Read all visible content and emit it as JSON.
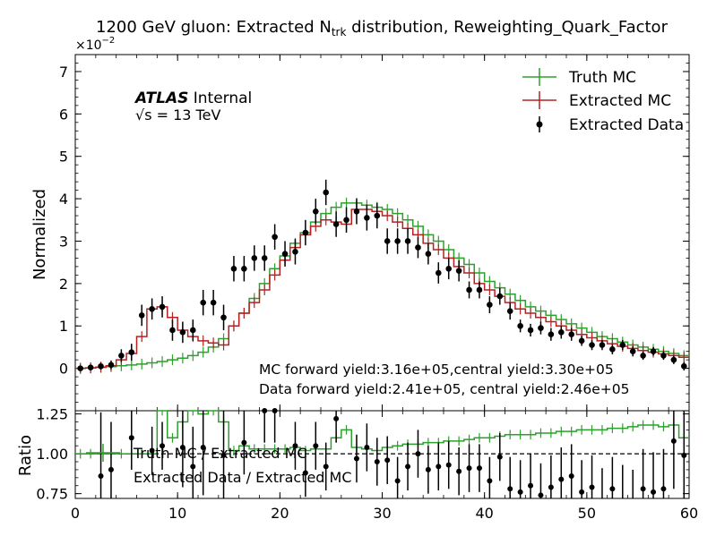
{
  "chart_data": {
    "type": "histogram",
    "title": "1200 GeV gluon: Extracted N",
    "title_sub": "trk",
    "title_suffix": " distribution, Reweighting_Quark_Factor",
    "exponent_label": "×10",
    "exponent_value": "−2",
    "ylabel": "Normalized",
    "ratio_ylabel": "Ratio",
    "atlas_label": "ATLAS",
    "internal_label": "Internal",
    "energy_label": "√s =  13 TeV",
    "annotation_mc": "MC forward yield:3.16e+05,central yield:3.30e+05",
    "annotation_data": "Data forward yield:2.41e+05, central yield:2.46e+05",
    "legend": {
      "position": "top-right",
      "entries": [
        {
          "label": "Truth MC",
          "color": "#2ca02c",
          "style": "step"
        },
        {
          "label": "Extracted MC",
          "color": "#b22222",
          "style": "step"
        },
        {
          "label": "Extracted Data",
          "color": "#000000",
          "style": "marker"
        }
      ]
    },
    "ratio_legend": {
      "entries": [
        {
          "label": "Truth MC / Extracted MC",
          "color": "#2ca02c"
        },
        {
          "label": "Extracted Data / Extracted MC",
          "color": "#000000"
        }
      ]
    },
    "xlim": [
      0,
      60
    ],
    "ylim": [
      -1,
      7.4
    ],
    "ratio_ylim": [
      0.72,
      1.27
    ],
    "x_ticks": [
      "0",
      "10",
      "20",
      "30",
      "40",
      "50",
      "60"
    ],
    "y_ticks": [
      "0",
      "1",
      "2",
      "3",
      "4",
      "5",
      "6",
      "7"
    ],
    "ratio_ticks": [
      "0.75",
      "1.00",
      "1.25"
    ],
    "bins": [
      0,
      1,
      2,
      3,
      4,
      5,
      6,
      7,
      8,
      9,
      10,
      11,
      12,
      13,
      14,
      15,
      16,
      17,
      18,
      19,
      20,
      21,
      22,
      23,
      24,
      25,
      26,
      27,
      28,
      29,
      30,
      31,
      32,
      33,
      34,
      35,
      36,
      37,
      38,
      39,
      40,
      41,
      42,
      43,
      44,
      45,
      46,
      47,
      48,
      49,
      50,
      51,
      52,
      53,
      54,
      55,
      56,
      57,
      58,
      59,
      60
    ],
    "series": [
      {
        "name": "Truth MC",
        "color": "#2ca02c",
        "values": [
          0.0,
          0.01,
          0.02,
          0.04,
          0.06,
          0.08,
          0.1,
          0.13,
          0.16,
          0.2,
          0.24,
          0.3,
          0.38,
          0.5,
          0.7,
          1.0,
          1.3,
          1.65,
          2.0,
          2.35,
          2.65,
          2.95,
          3.2,
          3.45,
          3.65,
          3.8,
          3.9,
          3.9,
          3.85,
          3.8,
          3.75,
          3.65,
          3.5,
          3.35,
          3.15,
          3.0,
          2.8,
          2.6,
          2.45,
          2.25,
          2.05,
          1.9,
          1.75,
          1.6,
          1.45,
          1.35,
          1.25,
          1.15,
          1.05,
          0.95,
          0.85,
          0.75,
          0.7,
          0.62,
          0.55,
          0.5,
          0.45,
          0.4,
          0.35,
          0.3
        ]
      },
      {
        "name": "Extracted MC",
        "color": "#b22222",
        "values": [
          0.0,
          0.01,
          0.03,
          0.06,
          0.2,
          0.35,
          0.75,
          1.4,
          1.45,
          1.2,
          0.9,
          0.75,
          0.65,
          0.6,
          0.55,
          1.0,
          1.3,
          1.55,
          1.85,
          2.2,
          2.55,
          2.85,
          3.15,
          3.35,
          3.5,
          3.45,
          3.4,
          3.75,
          3.75,
          3.7,
          3.6,
          3.45,
          3.3,
          3.15,
          2.95,
          2.8,
          2.6,
          2.4,
          2.25,
          2.0,
          1.85,
          1.7,
          1.55,
          1.4,
          1.3,
          1.2,
          1.1,
          1.0,
          0.9,
          0.8,
          0.72,
          0.65,
          0.58,
          0.52,
          0.47,
          0.42,
          0.38,
          0.34,
          0.3,
          0.26
        ]
      },
      {
        "name": "Extracted Data",
        "color": "#000000",
        "x": [
          0.5,
          1.5,
          2.5,
          3.5,
          4.5,
          5.5,
          6.5,
          7.5,
          8.5,
          9.5,
          10.5,
          11.5,
          12.5,
          13.5,
          14.5,
          15.5,
          16.5,
          17.5,
          18.5,
          19.5,
          20.5,
          21.5,
          22.5,
          23.5,
          24.5,
          25.5,
          26.5,
          27.5,
          28.5,
          29.5,
          30.5,
          31.5,
          32.5,
          33.5,
          34.5,
          35.5,
          36.5,
          37.5,
          38.5,
          39.5,
          40.5,
          41.5,
          42.5,
          43.5,
          44.5,
          45.5,
          46.5,
          47.5,
          48.5,
          49.5,
          50.5,
          51.5,
          52.5,
          53.5,
          54.5,
          55.5,
          56.5,
          57.5,
          58.5,
          59.5
        ],
        "values": [
          0.0,
          0.02,
          0.05,
          0.08,
          0.3,
          0.38,
          1.25,
          1.4,
          1.45,
          0.9,
          0.85,
          0.9,
          1.55,
          1.55,
          1.2,
          2.35,
          2.35,
          2.6,
          2.6,
          3.1,
          2.7,
          2.75,
          3.2,
          3.7,
          4.15,
          3.4,
          3.5,
          3.7,
          3.55,
          3.6,
          3.0,
          3.0,
          3.0,
          2.85,
          2.7,
          2.25,
          2.35,
          2.3,
          1.85,
          1.85,
          1.5,
          1.7,
          1.35,
          1.0,
          0.9,
          0.95,
          0.8,
          0.85,
          0.8,
          0.65,
          0.55,
          0.55,
          0.45,
          0.55,
          0.4,
          0.3,
          0.4,
          0.3,
          0.2,
          0.05
        ],
        "errors": [
          0.05,
          0.05,
          0.08,
          0.1,
          0.15,
          0.2,
          0.25,
          0.25,
          0.25,
          0.25,
          0.25,
          0.25,
          0.3,
          0.3,
          0.3,
          0.3,
          0.3,
          0.3,
          0.3,
          0.3,
          0.3,
          0.3,
          0.3,
          0.3,
          0.3,
          0.3,
          0.3,
          0.3,
          0.3,
          0.3,
          0.3,
          0.3,
          0.3,
          0.25,
          0.25,
          0.25,
          0.25,
          0.25,
          0.2,
          0.2,
          0.2,
          0.2,
          0.2,
          0.15,
          0.15,
          0.15,
          0.15,
          0.15,
          0.15,
          0.12,
          0.12,
          0.12,
          0.12,
          0.12,
          0.12,
          0.1,
          0.1,
          0.1,
          0.1,
          0.1
        ]
      }
    ],
    "ratio_series": [
      {
        "name": "Truth MC / Extracted MC",
        "color": "#2ca02c",
        "values": [
          1.0,
          1.0,
          1.0,
          1.0,
          1.0,
          1.0,
          1.0,
          1.0,
          1.3,
          1.1,
          1.2,
          1.35,
          1.25,
          1.3,
          1.2,
          1.02,
          1.05,
          1.03,
          1.03,
          1.03,
          1.03,
          1.04,
          1.02,
          1.03,
          1.03,
          1.1,
          1.15,
          1.04,
          1.03,
          1.02,
          1.04,
          1.05,
          1.06,
          1.06,
          1.07,
          1.07,
          1.08,
          1.08,
          1.09,
          1.1,
          1.1,
          1.11,
          1.12,
          1.12,
          1.12,
          1.13,
          1.13,
          1.14,
          1.14,
          1.15,
          1.15,
          1.15,
          1.16,
          1.16,
          1.17,
          1.18,
          1.18,
          1.17,
          1.18,
          1.1
        ]
      },
      {
        "name": "Extracted Data / Extracted MC",
        "color": "#000000",
        "x": [
          2.5,
          3.5,
          5.5,
          7.5,
          8.5,
          10.5,
          11.5,
          12.5,
          14.5,
          16.5,
          18.5,
          19.5,
          21.5,
          22.5,
          23.5,
          24.5,
          25.5,
          27.5,
          28.5,
          29.5,
          30.5,
          31.5,
          32.5,
          33.5,
          34.5,
          35.5,
          36.5,
          37.5,
          38.5,
          39.5,
          40.5,
          41.5,
          42.5,
          43.5,
          44.5,
          45.5,
          46.5,
          47.5,
          48.5,
          49.5,
          50.5,
          51.5,
          52.5,
          53.5,
          54.5,
          55.5,
          56.5,
          57.5,
          58.5,
          59.5
        ],
        "values": [
          0.86,
          0.9,
          1.1,
          1.02,
          1.05,
          1.04,
          0.92,
          1.04,
          0.99,
          1.07,
          1.27,
          1.27,
          1.05,
          0.88,
          1.05,
          0.92,
          1.22,
          0.97,
          1.04,
          0.95,
          0.96,
          0.83,
          0.92,
          1.0,
          0.9,
          0.92,
          0.93,
          0.89,
          0.91,
          0.91,
          0.83,
          0.98,
          0.78,
          0.76,
          0.8,
          0.74,
          0.79,
          0.84,
          0.86,
          0.76,
          0.79,
          0.71,
          0.78,
          0.68,
          0.65,
          0.78,
          0.76,
          0.78,
          1.08,
          0.99
        ],
        "errors": [
          0.4,
          0.3,
          0.2,
          0.15,
          0.15,
          0.25,
          0.25,
          0.3,
          0.3,
          0.2,
          0.2,
          0.2,
          0.15,
          0.15,
          0.15,
          0.15,
          0.15,
          0.15,
          0.15,
          0.15,
          0.15,
          0.15,
          0.15,
          0.15,
          0.15,
          0.15,
          0.15,
          0.15,
          0.15,
          0.15,
          0.15,
          0.15,
          0.2,
          0.2,
          0.2,
          0.2,
          0.2,
          0.2,
          0.2,
          0.2,
          0.2,
          0.2,
          0.2,
          0.25,
          0.25,
          0.25,
          0.25,
          0.25,
          0.3,
          0.3
        ]
      }
    ]
  }
}
